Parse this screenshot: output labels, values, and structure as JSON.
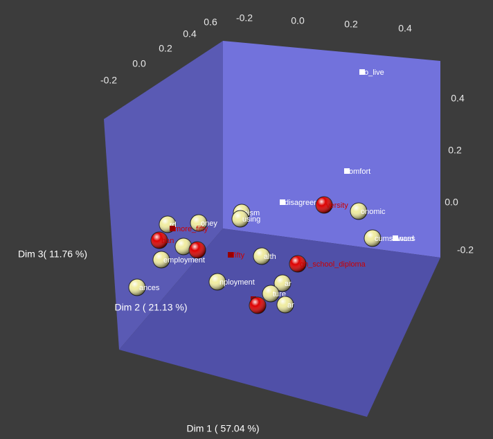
{
  "chart_data": {
    "type": "scatter3d",
    "xlabel": "Dim 1 ( 57.04 %)",
    "ylabel": "Dim 2 ( 21.13 %)",
    "zlabel": "Dim 3(  11.76 %)",
    "xticks": [
      -0.2,
      {
        "value": 0,
        "label": "0.0"
      },
      0.2,
      0.4
    ],
    "yticks": [
      0.6,
      0.4,
      0.2,
      {
        "value": 0,
        "label": "0.0"
      },
      -0.2
    ],
    "zticks": [
      0.4,
      0.2,
      {
        "value": 0,
        "label": "0.0"
      },
      -0.2
    ],
    "points": [
      {
        "label": "o_live",
        "kind": "square",
        "color": "#ffffff"
      },
      {
        "label": "omfort",
        "kind": "square",
        "color": "#ffffff"
      },
      {
        "label": "disagreement",
        "kind": "square",
        "color": "#ffffff"
      },
      {
        "label": "versity",
        "kind": "sphere",
        "color": "#dd0000"
      },
      {
        "label": "onomic",
        "kind": "sphere",
        "color": "#f0eca0"
      },
      {
        "label": "oism",
        "kind": "sphere",
        "color": "#f0eca0"
      },
      {
        "label": "using",
        "kind": "sphere",
        "color": "#f0eca0"
      },
      {
        "label": "cumstances",
        "kind": "sphere",
        "color": "#f0eca0"
      },
      {
        "label": "ward",
        "kind": "square",
        "color": "#ffffff"
      },
      {
        "label": "rd",
        "kind": "sphere",
        "color": "#f0eca0"
      },
      {
        "label": "oney",
        "kind": "sphere",
        "color": "#f0eca0"
      },
      {
        "label": "more_fifty",
        "kind": "square",
        "color": "#990000"
      },
      {
        "label": "ban",
        "kind": "sphere",
        "color": "#dd0000"
      },
      {
        "label": null,
        "kind": "sphere",
        "color": "#f0eca0"
      },
      {
        "label": null,
        "kind": "sphere",
        "color": "#dd0000"
      },
      {
        "label": "employment",
        "kind": "sphere",
        "color": "#f0eca0"
      },
      {
        "label": "fifty",
        "kind": "square",
        "color": "#990000"
      },
      {
        "label": "alth",
        "kind": "sphere",
        "color": "#f0eca0"
      },
      {
        "label": "gh_school_diploma",
        "kind": "sphere",
        "color": "#dd0000"
      },
      {
        "label": "ances",
        "kind": "sphere",
        "color": "#f0eca0"
      },
      {
        "label": "nployment",
        "kind": "sphere",
        "color": "#f0eca0"
      },
      {
        "label": "ar",
        "kind": "sphere",
        "color": "#f0eca0"
      },
      {
        "label": "ture",
        "kind": "sphere",
        "color": "#f0eca0"
      },
      {
        "label": null,
        "kind": "square",
        "color": "#990000"
      },
      {
        "label": null,
        "kind": "sphere",
        "color": "#dd0000"
      },
      {
        "label": "ar",
        "kind": "sphere",
        "color": "#f0eca0"
      }
    ]
  }
}
